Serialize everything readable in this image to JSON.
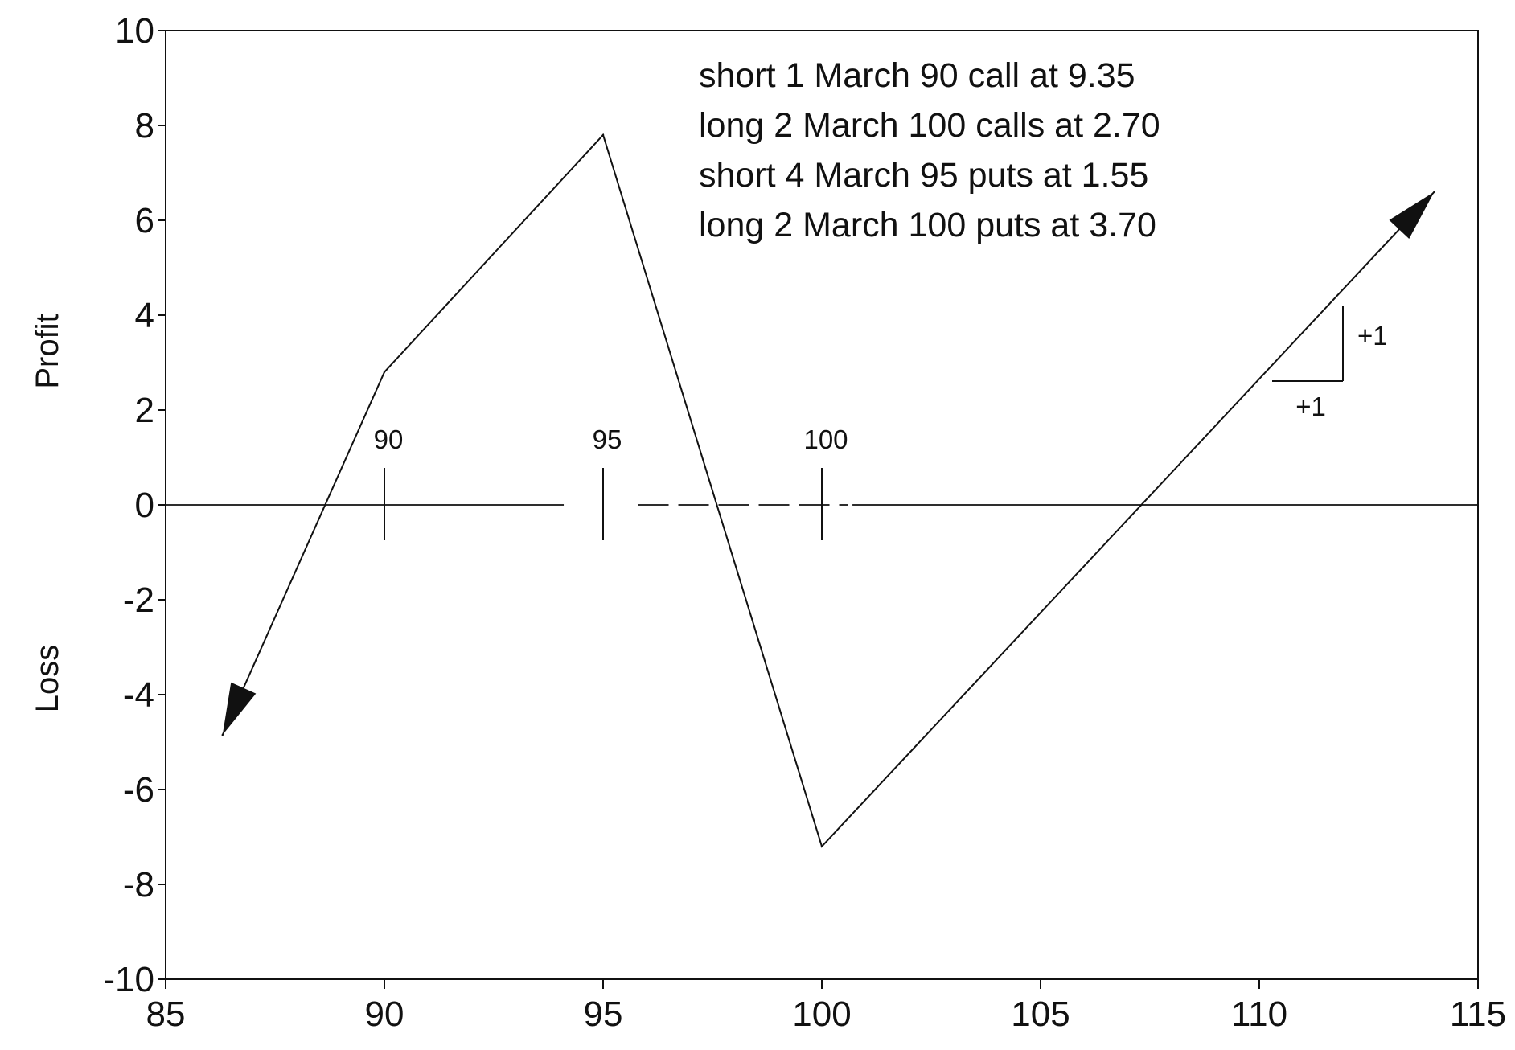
{
  "chart_data": {
    "type": "line",
    "title": "",
    "xlabel": "",
    "ylabel_upper": "Profit",
    "ylabel_lower": "Loss",
    "xlim": [
      85,
      115
    ],
    "ylim": [
      -10,
      10
    ],
    "x_ticks": [
      85,
      90,
      95,
      100,
      105,
      110,
      115
    ],
    "x_tick_labels": [
      "85",
      "90",
      "95",
      "100",
      "105",
      "110",
      "115"
    ],
    "y_ticks": [
      -10,
      -8,
      -6,
      -4,
      -2,
      0,
      2,
      4,
      6,
      8,
      10
    ],
    "y_tick_labels": [
      "-10",
      "-8",
      "-6",
      "-4",
      "-2",
      "0",
      "2",
      "4",
      "6",
      "8",
      "10"
    ],
    "grid": false,
    "series": [
      {
        "x": [
          86.3,
          90,
          95,
          100,
          114
        ],
        "y": [
          -4.85,
          2.8,
          7.8,
          -7.2,
          6.6
        ]
      }
    ],
    "arrow_ends": [
      "start",
      "end"
    ],
    "strike_markers": [
      {
        "x": 90,
        "label": "90"
      },
      {
        "x": 95,
        "label": "95"
      },
      {
        "x": 100,
        "label": "100"
      }
    ],
    "positions": [
      "short 1 March 90 call at 9.35",
      "long 2 March 100 calls at 2.70",
      "short 4 March 95 puts at 1.55",
      "long 2 March 100 puts at 3.70"
    ],
    "slope_indicator": {
      "rise": "+1",
      "run": "+1"
    }
  }
}
